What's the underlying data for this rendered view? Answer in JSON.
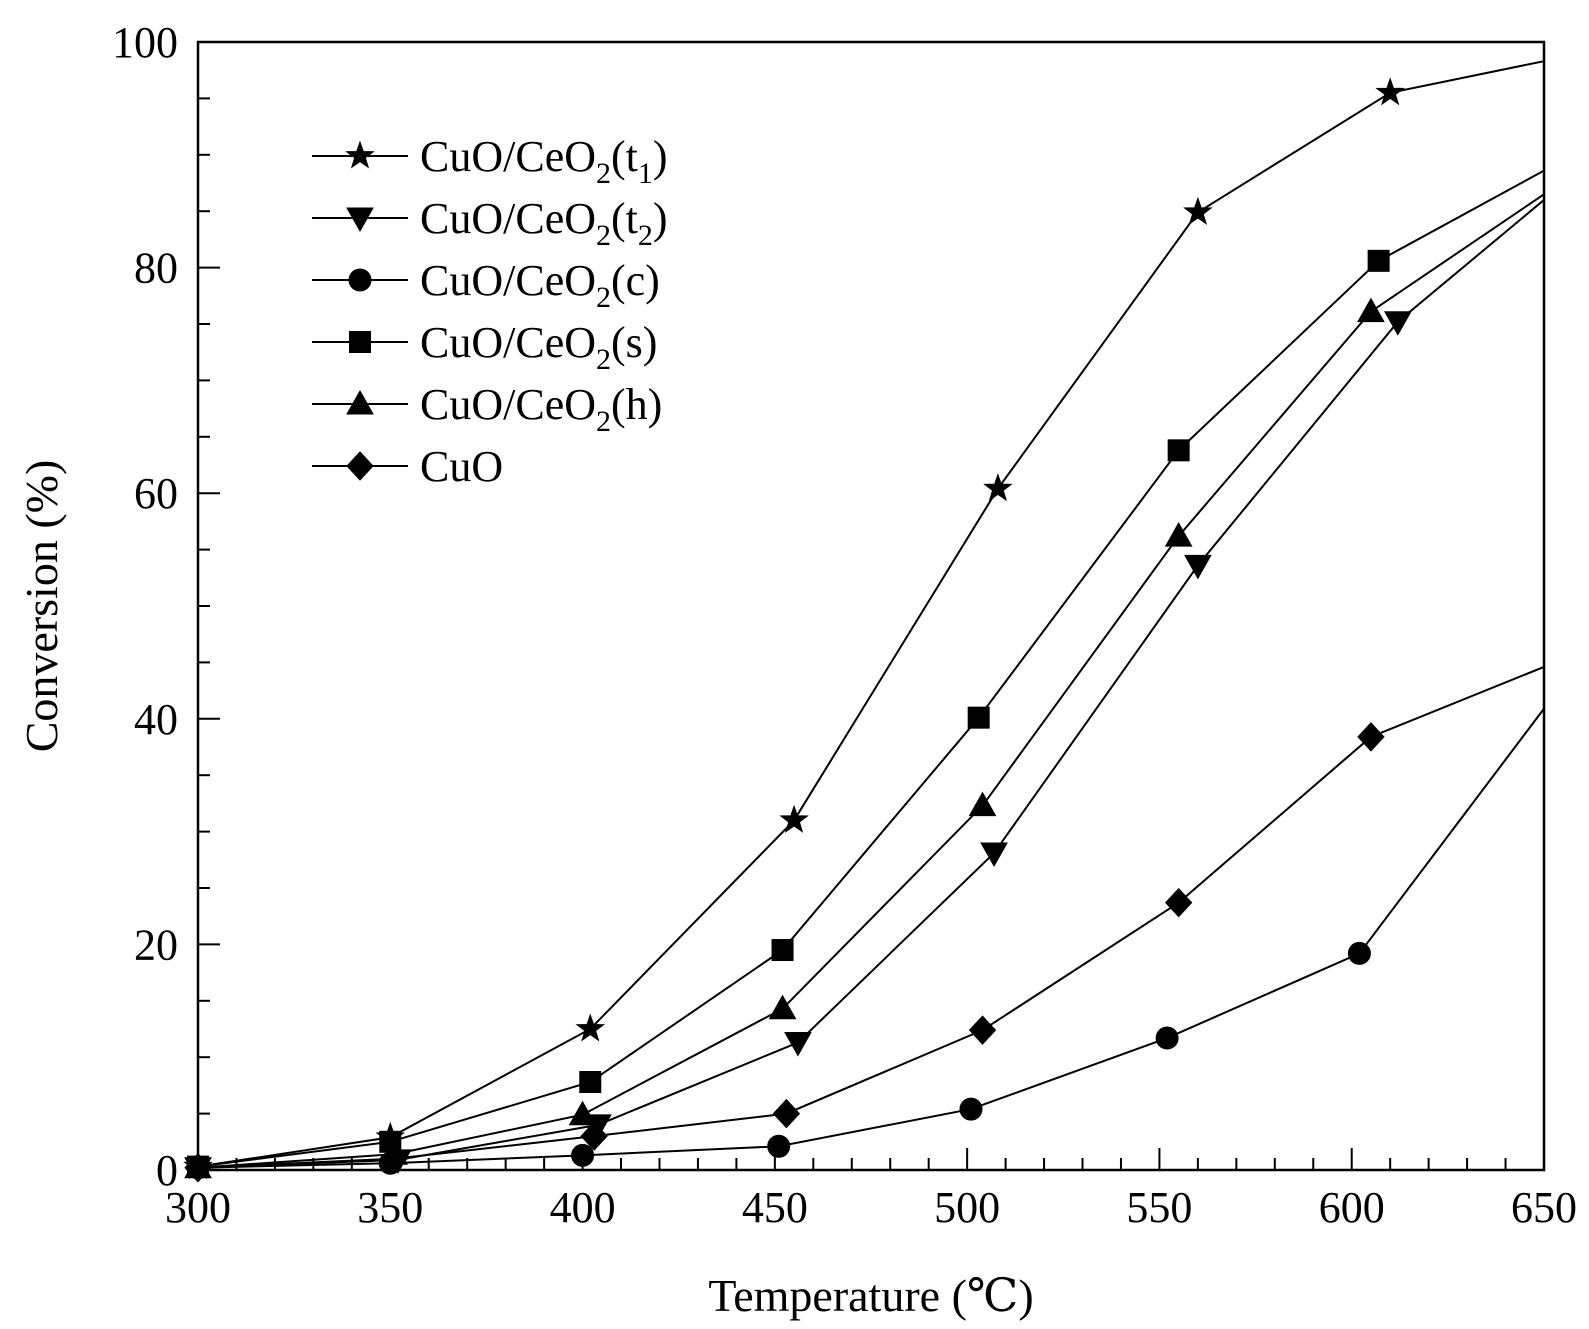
{
  "chart_data": {
    "type": "line",
    "xlabel": "Temperature (℃)",
    "ylabel": "Conversion (%)",
    "xlim": [
      300,
      650
    ],
    "ylim": [
      0,
      100
    ],
    "xticks": [
      300,
      350,
      400,
      450,
      500,
      550,
      600,
      650
    ],
    "yticks": [
      0,
      20,
      40,
      60,
      80,
      100
    ],
    "x_minor_step": 10,
    "y_minor_step": 5,
    "grid": false,
    "legend_position": "top-left",
    "series": [
      {
        "name": "CuO/CeO2(t1)",
        "label_main": "CuO/CeO",
        "label_sub": "2",
        "label_tail_open": "(t",
        "label_tail_sub": "1",
        "label_tail_close": ")",
        "marker": "star",
        "x": [
          300,
          350,
          402,
          455,
          508,
          560,
          610,
          650
        ],
        "y": [
          0.3,
          2.9,
          12.5,
          31.0,
          60.4,
          84.9,
          95.5,
          98.3
        ]
      },
      {
        "name": "CuO/CeO2(t2)",
        "label_main": "CuO/CeO",
        "label_sub": "2",
        "label_tail_open": "(t",
        "label_tail_sub": "2",
        "label_tail_close": ")",
        "marker": "triangle-down",
        "x": [
          300,
          352,
          404,
          456,
          507,
          560,
          612,
          650
        ],
        "y": [
          0.2,
          0.9,
          4.0,
          11.3,
          28.1,
          53.6,
          75.2,
          86.0
        ]
      },
      {
        "name": "CuO/CeO2(c)",
        "label_main": "CuO/CeO",
        "label_sub": "2",
        "label_tail_open": "(c)",
        "label_tail_sub": "",
        "label_tail_close": "",
        "marker": "circle",
        "x": [
          300,
          350,
          400,
          451,
          501,
          552,
          602,
          650
        ],
        "y": [
          0.2,
          0.6,
          1.3,
          2.1,
          5.4,
          11.7,
          19.2,
          40.9
        ]
      },
      {
        "name": "CuO/CeO2(s)",
        "label_main": "CuO/CeO",
        "label_sub": "2",
        "label_tail_open": "(s)",
        "label_tail_sub": "",
        "label_tail_close": "",
        "marker": "square",
        "x": [
          300,
          350,
          402,
          452,
          503,
          555,
          607,
          650
        ],
        "y": [
          0.3,
          2.5,
          7.8,
          19.5,
          40.1,
          63.8,
          80.6,
          88.6
        ]
      },
      {
        "name": "CuO/CeO2(h)",
        "label_main": "CuO/CeO",
        "label_sub": "2",
        "label_tail_open": "(h)",
        "label_tail_sub": "",
        "label_tail_close": "",
        "marker": "triangle-up",
        "x": [
          300,
          351,
          400,
          452,
          504,
          555,
          605,
          650
        ],
        "y": [
          0.2,
          1.4,
          4.9,
          14.3,
          32.3,
          56.2,
          76.1,
          86.5
        ]
      },
      {
        "name": "CuO",
        "label_main": "CuO",
        "label_sub": "",
        "label_tail_open": "",
        "label_tail_sub": "",
        "label_tail_close": "",
        "marker": "diamond",
        "x": [
          300,
          351,
          403,
          453,
          504,
          555,
          605,
          650
        ],
        "y": [
          0.2,
          1.0,
          3.0,
          5.0,
          12.4,
          23.7,
          38.4,
          44.6
        ]
      }
    ]
  }
}
